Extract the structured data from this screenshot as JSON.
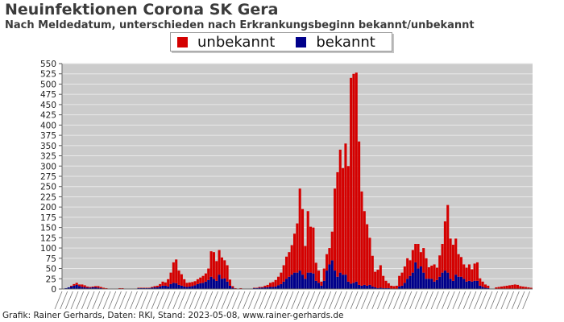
{
  "chart_data": {
    "type": "bar",
    "stacked": true,
    "title": "Neuinfektionen Corona SK Gera",
    "subtitle": "Nach Meldedatum, unterschieden nach Erkrankungsbeginn bekannt/unbekannt",
    "legend_position": "top-center",
    "grid": true,
    "ylim": [
      0,
      550
    ],
    "ytick_labels": [
      "0",
      "25",
      "50",
      "75",
      "100",
      "125",
      "150",
      "175",
      "200",
      "225",
      "250",
      "275",
      "300",
      "325",
      "350",
      "375",
      "400",
      "425",
      "450",
      "475",
      "500",
      "525",
      "550"
    ],
    "xlabel": "",
    "ylabel": "",
    "x_tick_labels_note": "dense overlapping date labels, illegible",
    "series": [
      {
        "name": "unbekannt",
        "color": "#d40000",
        "values": [
          0,
          0,
          0,
          2,
          4,
          5,
          4,
          6,
          5,
          3,
          2,
          2,
          3,
          4,
          3,
          2,
          1,
          1,
          0,
          1,
          0,
          1,
          1,
          0,
          0,
          0,
          1,
          0,
          1,
          1,
          1,
          1,
          1,
          2,
          3,
          4,
          6,
          10,
          8,
          18,
          28,
          50,
          58,
          35,
          28,
          18,
          10,
          10,
          10,
          10,
          12,
          14,
          17,
          20,
          28,
          62,
          65,
          48,
          60,
          52,
          44,
          40,
          15,
          4,
          1,
          0,
          1,
          0,
          0,
          0,
          0,
          1,
          1,
          2,
          2,
          4,
          6,
          10,
          12,
          16,
          21,
          28,
          40,
          54,
          60,
          72,
          95,
          120,
          200,
          160,
          80,
          150,
          112,
          112,
          44,
          30,
          10,
          30,
          40,
          40,
          70,
          200,
          255,
          300,
          260,
          320,
          282,
          502,
          510,
          510,
          350,
          230,
          180,
          150,
          115,
          75,
          38,
          45,
          55,
          30,
          18,
          12,
          7,
          6,
          7,
          26,
          32,
          40,
          50,
          38,
          55,
          45,
          60,
          35,
          60,
          50,
          28,
          32,
          42,
          30,
          52,
          70,
          120,
          165,
          98,
          88,
          88,
          55,
          48,
          35,
          34,
          40,
          30,
          42,
          45,
          18,
          13,
          8,
          6,
          0,
          0,
          3,
          4,
          5,
          6,
          7,
          8,
          9,
          10,
          9,
          6,
          5,
          4,
          3,
          2
        ]
      },
      {
        "name": "bekannt",
        "color": "#00008b",
        "values": [
          1,
          2,
          4,
          6,
          8,
          10,
          7,
          5,
          4,
          3,
          3,
          4,
          4,
          3,
          2,
          1,
          1,
          0,
          1,
          0,
          1,
          1,
          1,
          1,
          0,
          1,
          0,
          1,
          2,
          2,
          2,
          2,
          2,
          3,
          4,
          4,
          6,
          8,
          8,
          6,
          12,
          15,
          14,
          10,
          8,
          6,
          5,
          6,
          7,
          9,
          12,
          14,
          15,
          18,
          22,
          30,
          25,
          20,
          35,
          25,
          26,
          18,
          8,
          3,
          1,
          1,
          1,
          1,
          1,
          1,
          1,
          2,
          2,
          3,
          3,
          4,
          4,
          5,
          5,
          6,
          9,
          12,
          18,
          25,
          30,
          35,
          40,
          40,
          45,
          35,
          25,
          40,
          40,
          38,
          20,
          15,
          8,
          20,
          45,
          60,
          70,
          45,
          30,
          40,
          35,
          35,
          18,
          13,
          15,
          18,
          10,
          8,
          10,
          8,
          10,
          6,
          4,
          2,
          3,
          2,
          2,
          2,
          1,
          1,
          1,
          6,
          8,
          15,
          25,
          32,
          40,
          65,
          50,
          55,
          40,
          25,
          25,
          25,
          18,
          22,
          30,
          40,
          45,
          40,
          25,
          20,
          35,
          30,
          30,
          25,
          18,
          20,
          18,
          20,
          20,
          8,
          5,
          3,
          2,
          1,
          0,
          1,
          1,
          1,
          1,
          1,
          1,
          1,
          1,
          1,
          1,
          1,
          1,
          1,
          1
        ]
      }
    ]
  },
  "footer": {
    "text": "Grafik: Rainer Gerhards, Daten: RKI, Stand: 2023-05-08, www.rainer-gerhards.de"
  }
}
